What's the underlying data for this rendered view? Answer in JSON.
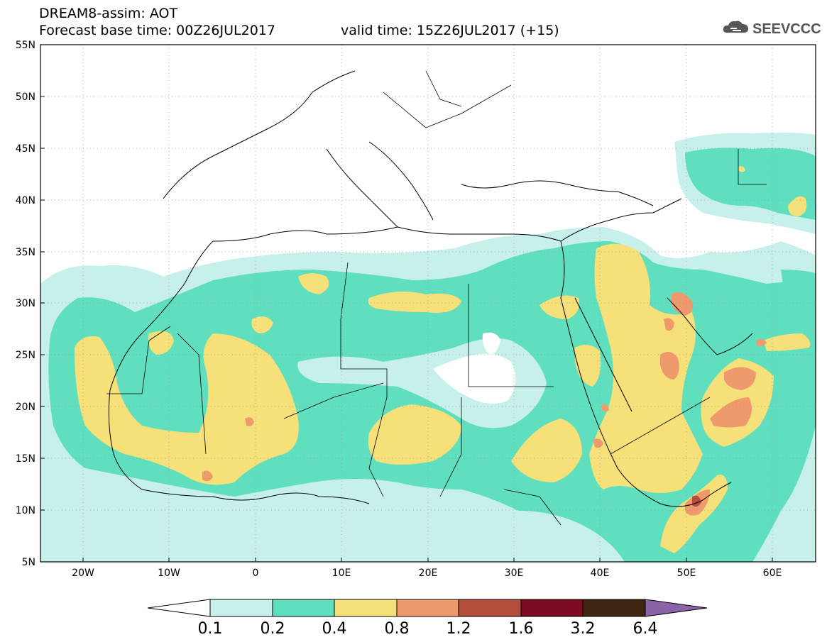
{
  "header": {
    "title": "DREAM8-assim: AOT",
    "base_time_label": "Forecast base time: 00Z26JUL2017",
    "valid_time_label": "valid time: 15Z26JUL2017 (+15)"
  },
  "logo": {
    "text": "SEEVCCC",
    "icon": "cloud-icon"
  },
  "map": {
    "lon_range": [
      -25,
      65
    ],
    "lat_range": [
      5,
      55
    ],
    "lat_ticks": [
      "55N",
      "50N",
      "45N",
      "40N",
      "35N",
      "30N",
      "25N",
      "20N",
      "15N",
      "10N",
      "5N"
    ],
    "lon_ticks": [
      "20W",
      "10W",
      "0",
      "10E",
      "20E",
      "30E",
      "40E",
      "50E",
      "60E"
    ]
  },
  "colorbar": {
    "labels": [
      "0.1",
      "0.2",
      "0.4",
      "0.8",
      "1.2",
      "1.6",
      "3.2",
      "6.4"
    ],
    "colors": [
      "#ffffff",
      "#c6f0e9",
      "#5fdfbd",
      "#f5e07a",
      "#ee9a6c",
      "#b34d3c",
      "#7d0b23",
      "#3f2613",
      "#8a63a8"
    ]
  },
  "aot_colors": {
    "c1": "#c6f0e9",
    "c2": "#5fdfbd",
    "c3": "#f5e07a",
    "c4": "#ee9a6c",
    "c5": "#b34d3c"
  }
}
